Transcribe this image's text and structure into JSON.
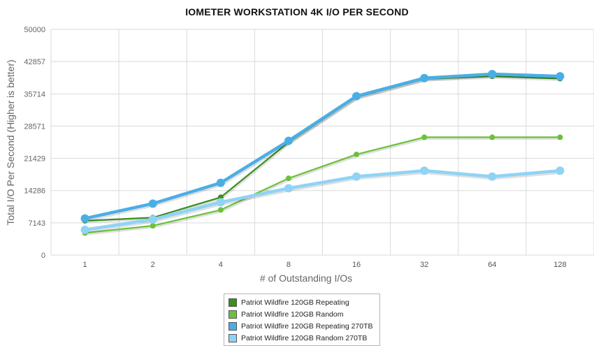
{
  "chart_data": {
    "type": "line",
    "title": "IOMETER WORKSTATION 4K I/O PER SECOND",
    "xlabel": "# of Outstanding I/Os",
    "ylabel": "Total I/O Per Second (Higher is better)",
    "categories": [
      "1",
      "2",
      "4",
      "8",
      "16",
      "32",
      "64",
      "128"
    ],
    "y_ticks": [
      "0",
      "7143",
      "14286",
      "21429",
      "28571",
      "35714",
      "42857",
      "50000"
    ],
    "ylim": [
      0,
      50000
    ],
    "grid": true,
    "legend_position": "bottom-center",
    "series": [
      {
        "name": "Patriot Wildfire 120GB Repeating",
        "color": "#3a8f1e",
        "values": [
          7600,
          8300,
          12800,
          25000,
          35000,
          39000,
          39600,
          39100
        ]
      },
      {
        "name": "Patriot Wildfire 120GB Random",
        "color": "#6cc13c",
        "values": [
          4900,
          6500,
          10000,
          17000,
          22300,
          26100,
          26100,
          26100
        ]
      },
      {
        "name": "Patriot Wildfire 120GB Repeating 270TB",
        "color": "#4aaee6",
        "values": [
          8100,
          11400,
          16000,
          25300,
          35200,
          39200,
          40100,
          39600
        ]
      },
      {
        "name": "Patriot Wildfire 120GB Random 270TB",
        "color": "#8fd3f5",
        "values": [
          5600,
          7900,
          11700,
          14800,
          17400,
          18700,
          17400,
          18700
        ]
      }
    ]
  }
}
